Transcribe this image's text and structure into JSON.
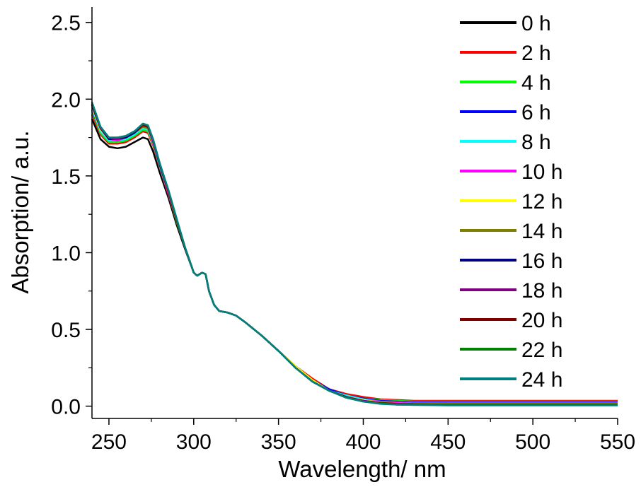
{
  "chart_data": {
    "type": "line",
    "title": "",
    "xlabel": "Wavelength/ nm",
    "ylabel": "Absorption/ a.u.",
    "xlim": [
      240,
      550
    ],
    "ylim": [
      -0.08,
      2.6
    ],
    "x_ticks": [
      250,
      300,
      350,
      400,
      450,
      500,
      550
    ],
    "y_ticks": [
      0.0,
      0.5,
      1.0,
      1.5,
      2.0,
      2.5
    ],
    "x_tick_labels": [
      "250",
      "300",
      "350",
      "400",
      "450",
      "500",
      "550"
    ],
    "y_tick_labels": [
      "0.0",
      "0.5",
      "1.0",
      "1.5",
      "2.0",
      "2.5"
    ],
    "grid": false,
    "legend_position": "top-right",
    "x": [
      240,
      245,
      250,
      255,
      260,
      265,
      270,
      273,
      276,
      280,
      285,
      290,
      295,
      300,
      302,
      305,
      307,
      309,
      312,
      315,
      320,
      325,
      330,
      340,
      350,
      360,
      370,
      380,
      390,
      400,
      410,
      420,
      430,
      450,
      500,
      550
    ],
    "series": [
      {
        "name": "0 h",
        "color": "#000000",
        "values": [
          1.87,
          1.74,
          1.69,
          1.68,
          1.69,
          1.72,
          1.75,
          1.74,
          1.66,
          1.52,
          1.36,
          1.18,
          1.02,
          0.87,
          0.85,
          0.87,
          0.86,
          0.75,
          0.66,
          0.62,
          0.61,
          0.59,
          0.55,
          0.46,
          0.36,
          0.26,
          0.17,
          0.11,
          0.07,
          0.05,
          0.04,
          0.03,
          0.025,
          0.02,
          0.02,
          0.02
        ]
      },
      {
        "name": "2 h",
        "color": "#ff0000",
        "values": [
          1.9,
          1.77,
          1.71,
          1.71,
          1.72,
          1.75,
          1.79,
          1.78,
          1.7,
          1.55,
          1.38,
          1.2,
          1.03,
          0.87,
          0.85,
          0.87,
          0.86,
          0.75,
          0.66,
          0.62,
          0.61,
          0.59,
          0.55,
          0.46,
          0.36,
          0.26,
          0.18,
          0.11,
          0.08,
          0.06,
          0.045,
          0.04,
          0.035,
          0.035,
          0.035,
          0.035
        ]
      },
      {
        "name": "4 h",
        "color": "#00ff00",
        "values": [
          1.92,
          1.78,
          1.72,
          1.72,
          1.73,
          1.76,
          1.8,
          1.79,
          1.71,
          1.56,
          1.39,
          1.2,
          1.03,
          0.87,
          0.85,
          0.87,
          0.86,
          0.75,
          0.66,
          0.62,
          0.61,
          0.59,
          0.55,
          0.46,
          0.36,
          0.26,
          0.17,
          0.11,
          0.07,
          0.05,
          0.04,
          0.035,
          0.03,
          0.03,
          0.03,
          0.03
        ]
      },
      {
        "name": "6 h",
        "color": "#0000ff",
        "values": [
          1.93,
          1.79,
          1.73,
          1.73,
          1.74,
          1.77,
          1.81,
          1.8,
          1.72,
          1.56,
          1.39,
          1.21,
          1.03,
          0.87,
          0.85,
          0.87,
          0.86,
          0.75,
          0.66,
          0.62,
          0.61,
          0.59,
          0.55,
          0.46,
          0.36,
          0.26,
          0.17,
          0.11,
          0.07,
          0.05,
          0.035,
          0.03,
          0.025,
          0.025,
          0.025,
          0.025
        ]
      },
      {
        "name": "8 h",
        "color": "#00ffff",
        "values": [
          1.94,
          1.79,
          1.73,
          1.73,
          1.74,
          1.77,
          1.81,
          1.8,
          1.72,
          1.56,
          1.39,
          1.21,
          1.03,
          0.87,
          0.85,
          0.87,
          0.86,
          0.75,
          0.66,
          0.62,
          0.61,
          0.59,
          0.55,
          0.46,
          0.36,
          0.26,
          0.17,
          0.1,
          0.07,
          0.045,
          0.03,
          0.025,
          0.02,
          0.02,
          0.02,
          0.02
        ]
      },
      {
        "name": "10 h",
        "color": "#ff00ff",
        "values": [
          1.95,
          1.8,
          1.74,
          1.73,
          1.75,
          1.78,
          1.82,
          1.81,
          1.72,
          1.57,
          1.39,
          1.21,
          1.03,
          0.87,
          0.85,
          0.87,
          0.86,
          0.75,
          0.66,
          0.62,
          0.61,
          0.59,
          0.55,
          0.46,
          0.36,
          0.26,
          0.17,
          0.1,
          0.06,
          0.04,
          0.03,
          0.025,
          0.02,
          0.02,
          0.02,
          0.02
        ]
      },
      {
        "name": "12 h",
        "color": "#ffff00",
        "values": [
          1.95,
          1.8,
          1.74,
          1.74,
          1.75,
          1.78,
          1.82,
          1.81,
          1.73,
          1.57,
          1.4,
          1.21,
          1.03,
          0.87,
          0.85,
          0.87,
          0.86,
          0.75,
          0.66,
          0.62,
          0.61,
          0.59,
          0.55,
          0.46,
          0.36,
          0.26,
          0.17,
          0.1,
          0.06,
          0.04,
          0.025,
          0.02,
          0.015,
          0.015,
          0.015,
          0.015
        ]
      },
      {
        "name": "14 h",
        "color": "#808000",
        "values": [
          1.96,
          1.81,
          1.74,
          1.74,
          1.75,
          1.78,
          1.82,
          1.81,
          1.73,
          1.57,
          1.4,
          1.21,
          1.03,
          0.87,
          0.85,
          0.87,
          0.86,
          0.75,
          0.66,
          0.62,
          0.61,
          0.59,
          0.55,
          0.46,
          0.36,
          0.25,
          0.16,
          0.1,
          0.06,
          0.035,
          0.025,
          0.02,
          0.015,
          0.015,
          0.015,
          0.015
        ]
      },
      {
        "name": "16 h",
        "color": "#000080",
        "values": [
          1.96,
          1.81,
          1.74,
          1.74,
          1.75,
          1.78,
          1.83,
          1.82,
          1.73,
          1.57,
          1.4,
          1.21,
          1.03,
          0.87,
          0.85,
          0.87,
          0.86,
          0.75,
          0.66,
          0.62,
          0.61,
          0.59,
          0.55,
          0.46,
          0.36,
          0.25,
          0.16,
          0.1,
          0.06,
          0.035,
          0.02,
          0.015,
          0.012,
          0.01,
          0.01,
          0.01
        ]
      },
      {
        "name": "18 h",
        "color": "#800080",
        "values": [
          1.97,
          1.81,
          1.75,
          1.74,
          1.76,
          1.79,
          1.83,
          1.82,
          1.73,
          1.58,
          1.4,
          1.21,
          1.03,
          0.87,
          0.85,
          0.87,
          0.86,
          0.75,
          0.66,
          0.62,
          0.61,
          0.59,
          0.55,
          0.46,
          0.36,
          0.25,
          0.16,
          0.1,
          0.06,
          0.035,
          0.02,
          0.015,
          0.01,
          0.01,
          0.01,
          0.01
        ]
      },
      {
        "name": "20 h",
        "color": "#800000",
        "values": [
          1.97,
          1.82,
          1.75,
          1.75,
          1.76,
          1.79,
          1.83,
          1.82,
          1.74,
          1.58,
          1.4,
          1.21,
          1.03,
          0.87,
          0.85,
          0.87,
          0.86,
          0.75,
          0.66,
          0.62,
          0.61,
          0.59,
          0.55,
          0.46,
          0.36,
          0.25,
          0.16,
          0.1,
          0.06,
          0.03,
          0.02,
          0.012,
          0.01,
          0.01,
          0.01,
          0.01
        ]
      },
      {
        "name": "22 h",
        "color": "#008000",
        "values": [
          1.98,
          1.82,
          1.75,
          1.75,
          1.76,
          1.79,
          1.84,
          1.83,
          1.74,
          1.58,
          1.41,
          1.22,
          1.03,
          0.87,
          0.85,
          0.87,
          0.86,
          0.75,
          0.66,
          0.62,
          0.61,
          0.59,
          0.55,
          0.46,
          0.36,
          0.25,
          0.16,
          0.1,
          0.055,
          0.03,
          0.018,
          0.01,
          0.008,
          0.008,
          0.008,
          0.008
        ]
      },
      {
        "name": "24 h",
        "color": "#008080",
        "values": [
          1.98,
          1.82,
          1.75,
          1.75,
          1.76,
          1.79,
          1.84,
          1.83,
          1.74,
          1.58,
          1.41,
          1.22,
          1.03,
          0.87,
          0.85,
          0.87,
          0.86,
          0.75,
          0.66,
          0.62,
          0.61,
          0.59,
          0.55,
          0.46,
          0.36,
          0.25,
          0.16,
          0.1,
          0.055,
          0.03,
          0.015,
          0.01,
          0.008,
          0.005,
          0.005,
          0.005
        ]
      }
    ]
  }
}
